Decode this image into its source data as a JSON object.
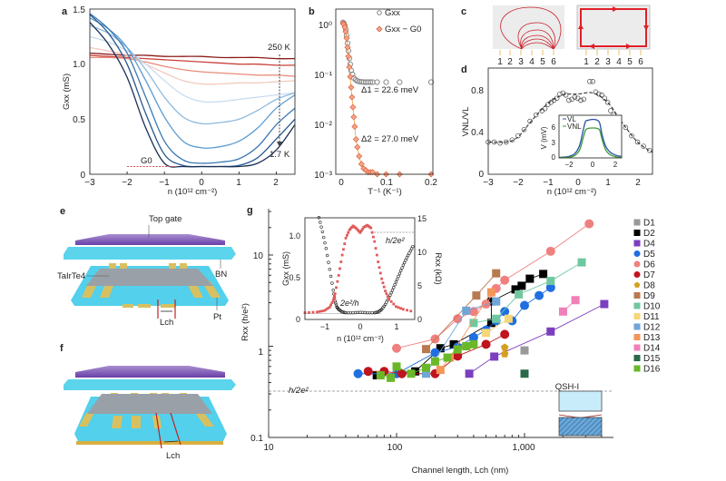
{
  "panels": {
    "a": {
      "letter": "a",
      "ylabel": "Gxx (mS)",
      "xlabel": "n (10¹² cm⁻²)",
      "hot_label": "250 K",
      "cold_label": "1.7 K",
      "g0_label": "G0",
      "xticks": [
        "−3",
        "−2",
        "−1",
        "0",
        "1",
        "2"
      ],
      "yticks": [
        "0",
        "0.5",
        "1.0",
        "1.5"
      ]
    },
    "b": {
      "letter": "b",
      "legend": [
        "Gxx",
        "Gxx − G0"
      ],
      "delta1": "Δ1 = 22.6 meV",
      "delta2": "Δ2 = 27.0 meV",
      "xlabel": "T⁻¹ (K⁻¹)",
      "xticks": [
        "0",
        "0.1",
        "0.2"
      ],
      "yticks": [
        "10⁰",
        "10⁻¹",
        "10⁻²",
        "10⁻³"
      ]
    },
    "c": {
      "letter": "c",
      "contacts": [
        "1",
        "2",
        "3",
        "4",
        "5",
        "6"
      ]
    },
    "d": {
      "letter": "d",
      "ylabel": "VNL/VL",
      "xlabel": "n (10¹² cm⁻²)",
      "xticks": [
        "−3",
        "−2",
        "−1",
        "0",
        "1",
        "2"
      ],
      "yticks": [
        "0",
        "0.4",
        "0.8"
      ],
      "inset": {
        "ylabel": "V (mV)",
        "legend": [
          "VL",
          "VNL"
        ],
        "xticks": [
          "−2",
          "0",
          "2"
        ],
        "yticks": [
          "0",
          "3",
          "6"
        ]
      }
    },
    "e": {
      "letter": "e",
      "top_gate": "Top gate",
      "material": "TaIrTe4",
      "bn": "BN",
      "pt": "Pt",
      "lch": "Lch"
    },
    "f": {
      "letter": "f",
      "lch": "Lch"
    },
    "g": {
      "letter": "g",
      "ylabel": "Rxx (h/e²)",
      "xlabel": "Channel length, Lch (nm)",
      "ref_label": "h/2e²",
      "qsh_label": "QSH-I",
      "xticks": [
        "10",
        "100",
        "1,000"
      ],
      "yticks": [
        "0.1",
        "1",
        "10"
      ],
      "inset": {
        "ylabel_left": "Gxx (mS)",
        "ylabel_right": "Rxx (kΩ)",
        "xlabel": "n (10¹² cm⁻²)",
        "ref_right": "h/2e²",
        "ref_left": "2e²/h",
        "xticks": [
          "−1",
          "0",
          "1"
        ],
        "yticks_left": [
          "0",
          "0.5",
          "1.0"
        ],
        "yticks_right": [
          "0",
          "5",
          "10",
          "15"
        ]
      }
    }
  },
  "chart_data": [
    {
      "panel": "a",
      "type": "line",
      "xlabel": "n (10¹² cm⁻²)",
      "ylabel": "Gxx (mS)",
      "xlim": [
        -3,
        2.5
      ],
      "ylim": [
        0,
        1.5
      ],
      "x": [
        -3,
        -2.5,
        -2,
        -1.5,
        -1,
        -0.5,
        0,
        0.5,
        1,
        1.5,
        2,
        2.5
      ],
      "series": [
        {
          "name": "250 K",
          "color": "#8b1a1a",
          "values": [
            1.1,
            1.09,
            1.08,
            1.08,
            1.07,
            1.07,
            1.07,
            1.06,
            1.06,
            1.06,
            1.05,
            1.05
          ]
        },
        {
          "color": "#c8403a",
          "values": [
            1.08,
            1.07,
            1.06,
            1.05,
            1.04,
            1.03,
            1.02,
            1.01,
            1.0,
            1.0,
            0.99,
            0.99
          ]
        },
        {
          "color": "#e88a78",
          "values": [
            1.06,
            1.06,
            1.05,
            1.02,
            0.98,
            0.95,
            0.93,
            0.92,
            0.91,
            0.9,
            0.9,
            0.89
          ]
        },
        {
          "color": "#f3c9bc",
          "values": [
            1.15,
            1.12,
            1.08,
            1.0,
            0.92,
            0.85,
            0.82,
            0.82,
            0.83,
            0.83,
            0.84,
            0.85
          ]
        },
        {
          "color": "#c7dcef",
          "values": [
            1.25,
            1.2,
            1.12,
            1.0,
            0.85,
            0.72,
            0.66,
            0.66,
            0.68,
            0.7,
            0.72,
            0.74
          ]
        },
        {
          "color": "#8fbadf",
          "values": [
            1.35,
            1.28,
            1.15,
            0.95,
            0.7,
            0.52,
            0.46,
            0.47,
            0.5,
            0.58,
            0.68,
            0.74
          ]
        },
        {
          "color": "#5b9bd0",
          "values": [
            1.42,
            1.32,
            1.15,
            0.85,
            0.52,
            0.3,
            0.24,
            0.25,
            0.3,
            0.42,
            0.6,
            0.72
          ]
        },
        {
          "color": "#3a78b5",
          "values": [
            1.46,
            1.32,
            1.1,
            0.7,
            0.3,
            0.13,
            0.1,
            0.11,
            0.14,
            0.25,
            0.45,
            0.6
          ]
        },
        {
          "color": "#26588f",
          "values": [
            1.45,
            1.28,
            1.0,
            0.55,
            0.18,
            0.08,
            0.07,
            0.07,
            0.08,
            0.15,
            0.32,
            0.5
          ]
        },
        {
          "name": "1.7 K",
          "color": "#1a2f55",
          "values": [
            1.38,
            1.18,
            0.88,
            0.42,
            0.1,
            0.07,
            0.07,
            0.07,
            0.07,
            0.1,
            0.22,
            0.45
          ]
        }
      ],
      "g0": 0.07
    },
    {
      "panel": "b",
      "type": "scatter",
      "xlabel": "T⁻¹ (K⁻¹)",
      "xlim": [
        0,
        0.2
      ],
      "ylim": [
        0.001,
        1.5
      ],
      "yscale": "log",
      "series": [
        {
          "name": "Gxx",
          "marker": "circle",
          "color": "#888888",
          "x": [
            0.004,
            0.006,
            0.008,
            0.01,
            0.012,
            0.014,
            0.016,
            0.018,
            0.02,
            0.022,
            0.025,
            0.028,
            0.032,
            0.036,
            0.04,
            0.045,
            0.05,
            0.055,
            0.06,
            0.065,
            0.07,
            0.08,
            0.1,
            0.13,
            0.2
          ],
          "y": [
            1.1,
            1.05,
            0.95,
            0.8,
            0.6,
            0.42,
            0.3,
            0.21,
            0.16,
            0.12,
            0.1,
            0.085,
            0.078,
            0.074,
            0.072,
            0.071,
            0.07,
            0.07,
            0.07,
            0.07,
            0.07,
            0.07,
            0.07,
            0.07,
            0.07
          ]
        },
        {
          "name": "Gxx − G0",
          "marker": "diamond",
          "color": "#e0603a",
          "x": [
            0.004,
            0.006,
            0.008,
            0.01,
            0.012,
            0.014,
            0.016,
            0.018,
            0.02,
            0.022,
            0.024,
            0.026,
            0.028,
            0.03,
            0.033,
            0.036,
            0.04,
            0.045,
            0.05,
            0.055,
            0.06,
            0.065,
            0.07,
            0.08,
            0.1,
            0.13,
            0.2
          ],
          "y": [
            1.05,
            1.0,
            0.88,
            0.72,
            0.53,
            0.35,
            0.23,
            0.14,
            0.09,
            0.055,
            0.035,
            0.022,
            0.014,
            0.009,
            0.005,
            0.0035,
            0.0023,
            0.0016,
            0.0013,
            0.0012,
            0.0011,
            0.0011,
            0.0011,
            0.001,
            0.001,
            0.001,
            0.001
          ]
        }
      ]
    },
    {
      "panel": "d",
      "type": "scatter",
      "xlabel": "n (10¹² cm⁻²)",
      "ylabel": "VNL/VL",
      "xlim": [
        -3,
        2.5
      ],
      "ylim": [
        0,
        1.0
      ],
      "x": [
        -3,
        -2.8,
        -2.6,
        -2.4,
        -2.2,
        -2,
        -1.8,
        -1.6,
        -1.4,
        -1.2,
        -1.1,
        -1,
        -0.9,
        -0.8,
        -0.7,
        -0.6,
        -0.5,
        -0.4,
        -0.3,
        -0.2,
        -0.1,
        0,
        0.1,
        0.2,
        0.4,
        0.5,
        0.6,
        0.7,
        0.8,
        0.9,
        1,
        1.1,
        1.2,
        1.4,
        1.6,
        1.8,
        2,
        2.2,
        2.4
      ],
      "y": [
        0.3,
        0.3,
        0.29,
        0.3,
        0.32,
        0.36,
        0.42,
        0.5,
        0.56,
        0.6,
        0.62,
        0.66,
        0.68,
        0.7,
        0.72,
        0.76,
        0.77,
        0.75,
        0.7,
        0.71,
        0.73,
        0.72,
        0.7,
        0.71,
        0.88,
        0.88,
        0.78,
        0.76,
        0.75,
        0.72,
        0.68,
        0.6,
        0.56,
        0.52,
        0.44,
        0.36,
        0.3,
        0.26,
        0.22
      ],
      "inset": {
        "xlim": [
          -2.85,
          2.45
        ],
        "ylim": [
          0,
          8.4
        ],
        "ylabel": "V (mV)",
        "series": [
          {
            "name": "VL",
            "color": "#2a4fa8",
            "x": [
              -2.8,
              -2,
              -1.5,
              -1.1,
              -0.8,
              -0.6,
              -0.4,
              0,
              0.4,
              0.6,
              0.8,
              1.1,
              1.5,
              2,
              2.4
            ],
            "y": [
              0.1,
              0.3,
              0.9,
              2.5,
              5.5,
              7.2,
              7.4,
              7.6,
              7.4,
              6.8,
              4.5,
              2.3,
              1.1,
              0.5,
              0.3
            ]
          },
          {
            "name": "VNL",
            "color": "#3a9a3a",
            "x": [
              -2.8,
              -2,
              -1.5,
              -1.1,
              -0.8,
              -0.6,
              -0.4,
              0,
              0.4,
              0.6,
              0.8,
              1.1,
              1.5,
              2,
              2.4
            ],
            "y": [
              0.05,
              0.15,
              0.5,
              1.6,
              4.0,
              5.5,
              5.8,
              5.9,
              5.8,
              5.4,
              3.6,
              1.6,
              0.6,
              0.2,
              0.1
            ]
          }
        ]
      }
    },
    {
      "panel": "g",
      "type": "scatter",
      "xlabel": "Channel length, Lch (nm)",
      "ylabel": "Rxx (h/e²)",
      "xscale": "log",
      "yscale": "log",
      "xlim": [
        10,
        4900
      ],
      "ylim": [
        0.1,
        30
      ],
      "reference": 0.5,
      "series": [
        {
          "name": "D1",
          "marker": "square",
          "color": "#999999",
          "x": [
            1000
          ],
          "y": [
            0.9
          ]
        },
        {
          "name": "D2",
          "marker": "square",
          "color": "#000000",
          "x": [
            70,
            140,
            220,
            280,
            550,
            550,
            850,
            950,
            1100,
            1400
          ],
          "y": [
            0.48,
            0.53,
            0.95,
            1.05,
            1.8,
            3.1,
            4.2,
            4.6,
            5.5,
            6.2
          ]
        },
        {
          "name": "D4",
          "marker": "square",
          "color": "#7b3fbf",
          "x": [
            370,
            580,
            1600,
            4200
          ],
          "y": [
            0.5,
            0.77,
            1.45,
            2.9
          ]
        },
        {
          "name": "D5",
          "marker": "circle",
          "color": "#1f6fe0",
          "x": [
            50,
            100,
            200,
            300,
            400,
            500,
            600,
            700,
            800,
            1000,
            1300,
            1600
          ],
          "y": [
            0.5,
            0.5,
            0.85,
            0.98,
            1.25,
            1.5,
            1.9,
            2.4,
            1.9,
            2.8,
            3.6,
            4.4
          ]
        },
        {
          "name": "D6",
          "marker": "circle",
          "color": "#f08080",
          "x": [
            100,
            200,
            300,
            400,
            500,
            600,
            700,
            1600,
            3200
          ],
          "y": [
            0.95,
            1.2,
            2.0,
            2.4,
            2.9,
            4.3,
            5.3,
            11,
            22
          ]
        },
        {
          "name": "D7",
          "marker": "circle",
          "color": "#c0141e",
          "x": [
            60,
            80,
            110,
            200,
            300,
            500,
            700
          ],
          "y": [
            0.53,
            0.53,
            0.5,
            0.5,
            0.78,
            1.05,
            1.35
          ]
        },
        {
          "name": "D8",
          "marker": "pentagon",
          "color": "#d4a020",
          "x": [
            700,
            700
          ],
          "y": [
            0.82,
            0.97
          ]
        },
        {
          "name": "D9",
          "marker": "square",
          "color": "#b87a50",
          "x": [
            170,
            420,
            600
          ],
          "y": [
            0.93,
            3.6,
            6.3
          ]
        },
        {
          "name": "D10",
          "marker": "square",
          "color": "#70c8a0",
          "x": [
            400,
            600,
            900,
            1600,
            2800
          ],
          "y": [
            1.8,
            2.0,
            3.7,
            5.2,
            8.3
          ]
        },
        {
          "name": "D11",
          "marker": "square",
          "color": "#f5d77a",
          "x": [
            500,
            750
          ],
          "y": [
            1.4,
            2.0
          ]
        },
        {
          "name": "D12",
          "marker": "square",
          "color": "#6fa6d6",
          "x": [
            170,
            350,
            600
          ],
          "y": [
            0.5,
            2.45,
            3.1
          ]
        },
        {
          "name": "D13",
          "marker": "square",
          "color": "#f4955a",
          "x": [
            220,
            260,
            550
          ],
          "y": [
            0.55,
            0.75,
            3.9
          ]
        },
        {
          "name": "D14",
          "marker": "square",
          "color": "#f080b8",
          "x": [
            2000,
            2500
          ],
          "y": [
            2.4,
            3.2
          ]
        },
        {
          "name": "D15",
          "marker": "square",
          "color": "#2a6a4a",
          "x": [
            1000
          ],
          "y": [
            0.5
          ]
        },
        {
          "name": "D16",
          "marker": "square",
          "color": "#6ab82a",
          "x": [
            75,
            90,
            100,
            130,
            170,
            200,
            250,
            300,
            350,
            400
          ],
          "y": [
            0.48,
            0.45,
            0.6,
            0.5,
            0.58,
            0.68,
            0.75,
            0.92,
            1.0,
            1.05
          ]
        }
      ],
      "inset": {
        "xlim": [
          -1.54,
          1.52
        ],
        "ylim_left": [
          0,
          1.22
        ],
        "ylim_right": [
          0,
          15
        ],
        "series": [
          {
            "name": "Gxx",
            "axis": "left",
            "marker": "circle",
            "color": "#222222",
            "x": [
              -1.15,
              -1.05,
              -0.95,
              -0.85,
              -0.75,
              -0.7,
              -0.65,
              -0.6,
              -0.5,
              -0.4,
              -0.2,
              0,
              0.2,
              0.4,
              0.5,
              0.6,
              0.7,
              0.8,
              0.9,
              1.0,
              1.1,
              1.2,
              1.3,
              1.4,
              1.5
            ],
            "y": [
              1.22,
              1.05,
              0.85,
              0.6,
              0.35,
              0.22,
              0.15,
              0.12,
              0.09,
              0.08,
              0.08,
              0.085,
              0.08,
              0.08,
              0.09,
              0.12,
              0.18,
              0.26,
              0.35,
              0.45,
              0.55,
              0.65,
              0.74,
              0.82,
              0.9
            ]
          },
          {
            "name": "Rxx",
            "axis": "right",
            "marker": "square",
            "color": "#e05a5a",
            "x": [
              -1.54,
              -1.2,
              -1.0,
              -0.85,
              -0.75,
              -0.7,
              -0.6,
              -0.5,
              -0.4,
              -0.3,
              -0.2,
              -0.1,
              0,
              0.1,
              0.2,
              0.3,
              0.4,
              0.5,
              0.6,
              0.7,
              0.8,
              1.0,
              1.2,
              1.52
            ],
            "y": [
              1.0,
              1.1,
              1.3,
              1.8,
              2.8,
              3.8,
              6.5,
              9.5,
              12.0,
              13.2,
              13.8,
              13.4,
              12.8,
              13.6,
              13.9,
              13.5,
              11.5,
              8.5,
              6.0,
              4.2,
              3.0,
              1.9,
              1.5,
              1.1
            ]
          }
        ]
      }
    }
  ]
}
